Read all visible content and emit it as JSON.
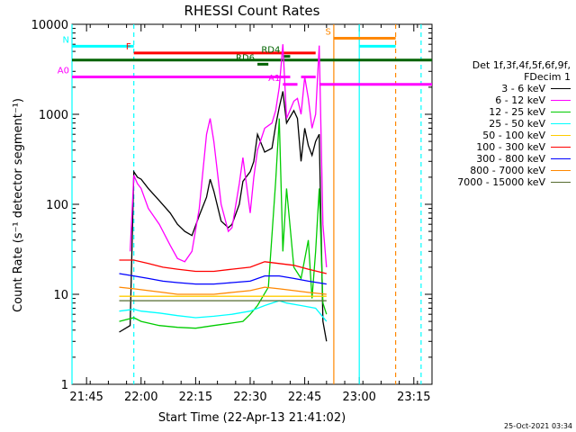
{
  "chart_data": {
    "type": "line",
    "title": "RHESSI Count Rates",
    "xlabel": "Start Time (22-Apr-13 21:41:02)",
    "ylabel": "Count Rate (s⁻¹ detector segment⁻¹)",
    "yscale": "log",
    "ylim": [
      1,
      10000
    ],
    "xlim": [
      "21:41",
      "23:20"
    ],
    "x_ticks": [
      "21:45",
      "22:00",
      "22:15",
      "22:30",
      "22:45",
      "23:00",
      "23:15"
    ],
    "y_ticks": [
      "1",
      "10",
      "100",
      "1000",
      "10000"
    ],
    "grid": false,
    "legend_position": "right",
    "legend_header": [
      "Det 1f,3f,4f,5f,6f,9f,",
      "FDecim 1"
    ],
    "timestamp": "25-Oct-2021 03:34",
    "series": [
      {
        "name": "3 - 6 keV",
        "color": "#000000",
        "x": [
          "21:54",
          "21:57",
          "21:58",
          "21:59",
          "22:00",
          "22:02",
          "22:05",
          "22:08",
          "22:10",
          "22:12",
          "22:14",
          "22:16",
          "22:18",
          "22:19",
          "22:20",
          "22:22",
          "22:24",
          "22:25",
          "22:27",
          "22:28",
          "22:30",
          "22:31",
          "22:32",
          "22:34",
          "22:36",
          "22:37",
          "22:38",
          "22:39",
          "22:40",
          "22:42",
          "22:43",
          "22:44",
          "22:45",
          "22:46",
          "22:47",
          "22:48",
          "22:49",
          "22:50",
          "22:51"
        ],
        "y": [
          3.8,
          4.5,
          230,
          200,
          190,
          150,
          110,
          80,
          60,
          50,
          45,
          75,
          120,
          190,
          140,
          65,
          55,
          60,
          100,
          180,
          230,
          300,
          600,
          380,
          420,
          750,
          1200,
          1800,
          800,
          1100,
          900,
          300,
          700,
          450,
          350,
          500,
          600,
          5,
          3
        ]
      },
      {
        "name": "6 - 12 keV",
        "color": "#ff00ff",
        "x": [
          "21:57",
          "21:58",
          "21:59",
          "22:00",
          "22:02",
          "22:05",
          "22:08",
          "22:10",
          "22:12",
          "22:14",
          "22:16",
          "22:18",
          "22:19",
          "22:20",
          "22:22",
          "22:24",
          "22:25",
          "22:27",
          "22:28",
          "22:30",
          "22:31",
          "22:32",
          "22:34",
          "22:36",
          "22:37",
          "22:38",
          "22:39",
          "22:40",
          "22:42",
          "22:43",
          "22:44",
          "22:45",
          "22:46",
          "22:47",
          "22:48",
          "22:49",
          "22:50",
          "22:51"
        ],
        "y": [
          30,
          210,
          170,
          150,
          90,
          60,
          35,
          25,
          23,
          30,
          90,
          600,
          900,
          500,
          100,
          50,
          55,
          170,
          330,
          80,
          200,
          400,
          700,
          800,
          1100,
          2000,
          6000,
          900,
          1400,
          1500,
          1000,
          2600,
          1500,
          700,
          1000,
          5800,
          60,
          20
        ]
      },
      {
        "name": "12 - 25 keV",
        "color": "#00cc00",
        "x": [
          "21:54",
          "21:58",
          "22:00",
          "22:05",
          "22:10",
          "22:15",
          "22:20",
          "22:25",
          "22:28",
          "22:30",
          "22:32",
          "22:35",
          "22:37",
          "22:38",
          "22:39",
          "22:40",
          "22:42",
          "22:44",
          "22:46",
          "22:47",
          "22:48",
          "22:49",
          "22:50",
          "22:51"
        ],
        "y": [
          5,
          5.5,
          5,
          4.5,
          4.3,
          4.2,
          4.5,
          4.8,
          5,
          6,
          7.5,
          12,
          180,
          900,
          30,
          150,
          20,
          15,
          40,
          9,
          30,
          150,
          8,
          6
        ]
      },
      {
        "name": "25 - 50 keV",
        "color": "#00ffff",
        "x": [
          "21:54",
          "21:58",
          "22:00",
          "22:05",
          "22:10",
          "22:15",
          "22:20",
          "22:25",
          "22:30",
          "22:34",
          "22:38",
          "22:40",
          "22:44",
          "22:48",
          "22:51"
        ],
        "y": [
          6.5,
          6.8,
          6.5,
          6.2,
          5.8,
          5.5,
          5.7,
          6,
          6.5,
          7.5,
          8.5,
          8,
          7.5,
          7,
          5
        ]
      },
      {
        "name": "50 - 100 keV",
        "color": "#ffcc00",
        "x": [
          "21:54",
          "22:51"
        ],
        "y": [
          9.5,
          9.5
        ]
      },
      {
        "name": "100 - 300 keV",
        "color": "#ff0000",
        "x": [
          "21:54",
          "21:58",
          "22:02",
          "22:06",
          "22:10",
          "22:15",
          "22:20",
          "22:25",
          "22:30",
          "22:34",
          "22:38",
          "22:42",
          "22:46",
          "22:51"
        ],
        "y": [
          24,
          24,
          22,
          20,
          19,
          18,
          18,
          19,
          20,
          23,
          22,
          21,
          19,
          17
        ]
      },
      {
        "name": "300 - 800 keV",
        "color": "#0000ff",
        "x": [
          "21:54",
          "21:58",
          "22:02",
          "22:06",
          "22:10",
          "22:15",
          "22:20",
          "22:25",
          "22:30",
          "22:34",
          "22:38",
          "22:42",
          "22:46",
          "22:51"
        ],
        "y": [
          17,
          16,
          15,
          14,
          13.5,
          13,
          13,
          13.5,
          14,
          16,
          16,
          15,
          14,
          13
        ]
      },
      {
        "name": "800 - 7000 keV",
        "color": "#ff8800",
        "x": [
          "21:54",
          "21:58",
          "22:02",
          "22:06",
          "22:10",
          "22:15",
          "22:20",
          "22:25",
          "22:30",
          "22:34",
          "22:38",
          "22:42",
          "22:46",
          "22:51"
        ],
        "y": [
          12,
          11.5,
          11,
          10.5,
          10,
          10,
          10,
          10.5,
          11,
          12,
          11.5,
          11,
          10.5,
          10
        ]
      },
      {
        "name": "7000 - 15000 keV",
        "color": "#556b2f",
        "x": [
          "21:54",
          "22:51"
        ],
        "y": [
          8.5,
          8.5
        ]
      }
    ],
    "state_bars": [
      {
        "label": "N",
        "color": "#00ffff",
        "segments": [
          [
            "21:41",
            "21:58"
          ],
          [
            "23:00",
            "23:10"
          ]
        ],
        "y_level": 5700
      },
      {
        "label": "F",
        "color": "#ff0000",
        "segments": [
          [
            "21:58",
            "22:48"
          ]
        ],
        "y_level": 4800
      },
      {
        "label": "S",
        "color": "#ff8800",
        "segments": [
          [
            "22:53",
            "23:10"
          ]
        ],
        "y_level": 7000
      },
      {
        "label": "RD6",
        "color": "#006400",
        "segments": [
          [
            "22:32",
            "22:35"
          ]
        ],
        "y_level": 3600
      },
      {
        "label": "RD4",
        "color": "#006400",
        "segments": [
          [
            "22:39",
            "22:41"
          ]
        ],
        "y_level": 4400
      },
      {
        "label": "",
        "color": "#006400",
        "segments": [
          [
            "21:41",
            "23:20"
          ]
        ],
        "y_level": 4000
      },
      {
        "label": "A0",
        "color": "#ff00ff",
        "segments": [
          [
            "21:41",
            "22:41"
          ],
          [
            "22:44",
            "22:48"
          ]
        ],
        "y_level": 2600
      },
      {
        "label": "A1",
        "color": "#ff00ff",
        "segments": [
          [
            "22:39",
            "22:43"
          ],
          [
            "22:49",
            "23:20"
          ]
        ],
        "y_level": 2150
      }
    ],
    "vertical_lines": [
      {
        "time": "21:41",
        "color": "#00ffff",
        "style": "solid"
      },
      {
        "time": "21:58",
        "color": "#00ffff",
        "style": "dashed"
      },
      {
        "time": "22:53",
        "color": "#ff8800",
        "style": "solid"
      },
      {
        "time": "23:00",
        "color": "#00ffff",
        "style": "solid"
      },
      {
        "time": "23:10",
        "color": "#ff8800",
        "style": "dashed"
      },
      {
        "time": "23:17",
        "color": "#00ffff",
        "style": "dashed"
      }
    ]
  }
}
